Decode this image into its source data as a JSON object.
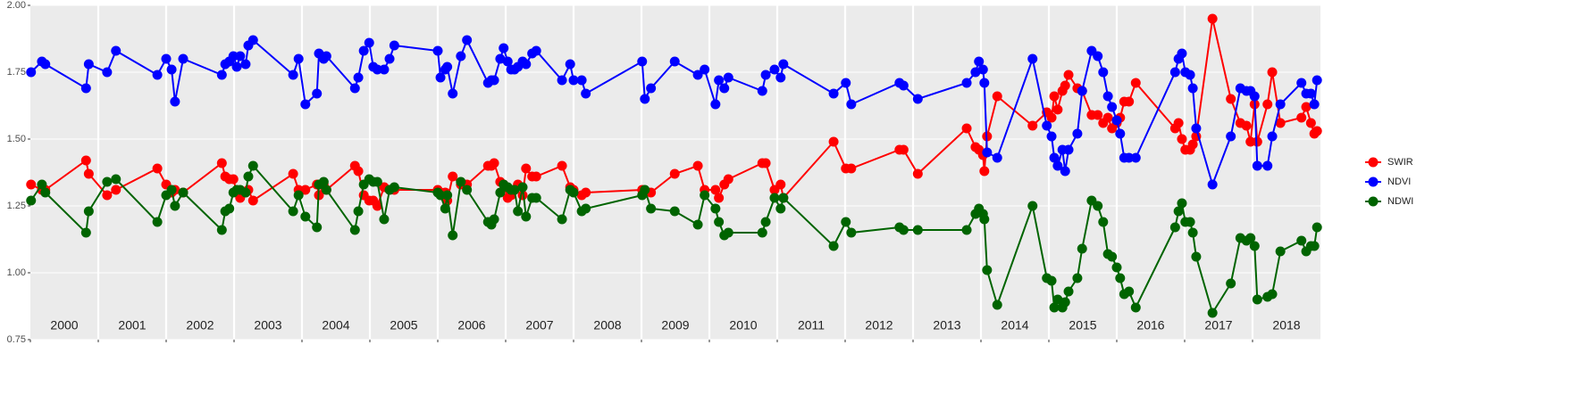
{
  "chart_data": {
    "type": "line",
    "x": [
      2000.01,
      2000.17,
      2000.22,
      2000.82,
      2000.86,
      2001.13,
      2001.26,
      2001.87,
      2002.0,
      2002.08,
      2002.13,
      2002.25,
      2002.82,
      2002.87,
      2002.93,
      2002.99,
      2003.04,
      2003.09,
      2003.17,
      2003.21,
      2003.28,
      2003.87,
      2003.95,
      2004.05,
      2004.22,
      2004.25,
      2004.32,
      2004.36,
      2004.78,
      2004.83,
      2004.91,
      2004.99,
      2005.05,
      2005.11,
      2005.21,
      2005.29,
      2005.36,
      2006.0,
      2006.04,
      2006.11,
      2006.14,
      2006.22,
      2006.34,
      2006.43,
      2006.74,
      2006.79,
      2006.83,
      2006.92,
      2006.97,
      2007.03,
      2007.08,
      2007.13,
      2007.18,
      2007.25,
      2007.3,
      2007.39,
      2007.45,
      2007.83,
      2007.95,
      2008.0,
      2008.12,
      2008.18,
      2009.01,
      2009.05,
      2009.14,
      2009.49,
      2009.83,
      2009.93,
      2010.09,
      2010.14,
      2010.22,
      2010.28,
      2010.78,
      2010.83,
      2010.96,
      2011.05,
      2011.09,
      2011.83,
      2012.01,
      2012.09,
      2012.8,
      2012.86,
      2013.07,
      2013.79,
      2013.92,
      2013.97,
      2014.03,
      2014.05,
      2014.09,
      2014.24,
      2014.76,
      2014.97,
      2015.04,
      2015.08,
      2015.13,
      2015.2,
      2015.24,
      2015.29,
      2015.42,
      2015.49,
      2015.63,
      2015.72,
      2015.8,
      2015.87,
      2015.93,
      2016.0,
      2016.05,
      2016.11,
      2016.18,
      2016.28,
      2016.86,
      2016.91,
      2016.96,
      2017.01,
      2017.08,
      2017.12,
      2017.17,
      2017.41,
      2017.68,
      2017.82,
      2017.91,
      2017.97,
      2018.03,
      2018.07,
      2018.22,
      2018.29,
      2018.41,
      2018.72,
      2018.79,
      2018.86,
      2018.91,
      2018.95
    ],
    "series": [
      {
        "name": "SWIR",
        "color": "#ff0000",
        "values": [
          1.33,
          1.31,
          1.31,
          1.42,
          1.37,
          1.29,
          1.31,
          1.39,
          1.33,
          1.3,
          1.31,
          1.3,
          1.41,
          1.36,
          1.35,
          1.35,
          1.3,
          1.28,
          1.3,
          1.31,
          1.27,
          1.37,
          1.31,
          1.31,
          1.33,
          1.29,
          1.33,
          1.31,
          1.4,
          1.38,
          1.29,
          1.27,
          1.27,
          1.25,
          1.32,
          1.31,
          1.31,
          1.31,
          1.3,
          1.3,
          1.27,
          1.36,
          1.33,
          1.33,
          1.4,
          1.4,
          1.41,
          1.34,
          1.33,
          1.28,
          1.29,
          1.31,
          1.33,
          1.29,
          1.39,
          1.36,
          1.36,
          1.4,
          1.32,
          1.31,
          1.29,
          1.3,
          1.31,
          1.3,
          1.3,
          1.37,
          1.4,
          1.31,
          1.31,
          1.28,
          1.33,
          1.35,
          1.41,
          1.41,
          1.31,
          1.33,
          1.28,
          1.49,
          1.39,
          1.39,
          1.46,
          1.46,
          1.37,
          1.54,
          1.47,
          1.46,
          1.44,
          1.38,
          1.51,
          1.66,
          1.55,
          1.6,
          1.58,
          1.66,
          1.61,
          1.68,
          1.7,
          1.74,
          1.69,
          1.68,
          1.59,
          1.59,
          1.56,
          1.58,
          1.54,
          1.56,
          1.58,
          1.64,
          1.64,
          1.71,
          1.54,
          1.56,
          1.5,
          1.46,
          1.46,
          1.48,
          1.51,
          1.95,
          1.65,
          1.56,
          1.55,
          1.49,
          1.63,
          1.49,
          1.63,
          1.75,
          1.56,
          1.58,
          1.62,
          1.56,
          1.52,
          1.53
        ]
      },
      {
        "name": "NDVI",
        "color": "#0000ff",
        "values": [
          1.75,
          1.79,
          1.78,
          1.69,
          1.78,
          1.75,
          1.83,
          1.74,
          1.8,
          1.76,
          1.64,
          1.8,
          1.74,
          1.78,
          1.79,
          1.81,
          1.77,
          1.81,
          1.78,
          1.85,
          1.87,
          1.74,
          1.8,
          1.63,
          1.67,
          1.82,
          1.8,
          1.81,
          1.69,
          1.73,
          1.83,
          1.86,
          1.77,
          1.76,
          1.76,
          1.8,
          1.85,
          1.83,
          1.73,
          1.76,
          1.77,
          1.67,
          1.81,
          1.87,
          1.71,
          1.72,
          1.72,
          1.8,
          1.84,
          1.79,
          1.76,
          1.76,
          1.77,
          1.79,
          1.78,
          1.82,
          1.83,
          1.72,
          1.78,
          1.72,
          1.72,
          1.67,
          1.79,
          1.65,
          1.69,
          1.79,
          1.74,
          1.76,
          1.63,
          1.72,
          1.69,
          1.73,
          1.68,
          1.74,
          1.76,
          1.73,
          1.78,
          1.67,
          1.71,
          1.63,
          1.71,
          1.7,
          1.65,
          1.71,
          1.75,
          1.79,
          1.76,
          1.71,
          1.45,
          1.43,
          1.8,
          1.55,
          1.51,
          1.43,
          1.4,
          1.46,
          1.38,
          1.46,
          1.52,
          1.68,
          1.83,
          1.81,
          1.75,
          1.66,
          1.62,
          1.57,
          1.52,
          1.43,
          1.43,
          1.43,
          1.75,
          1.8,
          1.82,
          1.75,
          1.74,
          1.69,
          1.54,
          1.33,
          1.51,
          1.69,
          1.68,
          1.68,
          1.66,
          1.4,
          1.4,
          1.51,
          1.63,
          1.71,
          1.67,
          1.67,
          1.63,
          1.72
        ]
      },
      {
        "name": "NDWI",
        "color": "#006400",
        "values": [
          1.27,
          1.33,
          1.3,
          1.15,
          1.23,
          1.34,
          1.35,
          1.19,
          1.29,
          1.31,
          1.25,
          1.3,
          1.16,
          1.23,
          1.24,
          1.3,
          1.31,
          1.31,
          1.3,
          1.36,
          1.4,
          1.23,
          1.29,
          1.21,
          1.17,
          1.33,
          1.34,
          1.31,
          1.16,
          1.23,
          1.33,
          1.35,
          1.34,
          1.34,
          1.2,
          1.31,
          1.32,
          1.3,
          1.29,
          1.24,
          1.29,
          1.14,
          1.34,
          1.31,
          1.19,
          1.18,
          1.2,
          1.3,
          1.33,
          1.32,
          1.31,
          1.31,
          1.23,
          1.32,
          1.21,
          1.28,
          1.28,
          1.2,
          1.31,
          1.3,
          1.23,
          1.24,
          1.29,
          1.31,
          1.24,
          1.23,
          1.18,
          1.29,
          1.24,
          1.19,
          1.14,
          1.15,
          1.15,
          1.19,
          1.28,
          1.24,
          1.28,
          1.1,
          1.19,
          1.15,
          1.17,
          1.16,
          1.16,
          1.16,
          1.22,
          1.24,
          1.22,
          1.2,
          1.01,
          0.88,
          1.25,
          0.98,
          0.97,
          0.87,
          0.9,
          0.87,
          0.89,
          0.93,
          0.98,
          1.09,
          1.27,
          1.25,
          1.19,
          1.07,
          1.06,
          1.02,
          0.98,
          0.92,
          0.93,
          0.87,
          1.17,
          1.23,
          1.26,
          1.19,
          1.19,
          1.15,
          1.06,
          0.85,
          0.96,
          1.13,
          1.12,
          1.13,
          1.1,
          0.9,
          0.91,
          0.92,
          1.08,
          1.12,
          1.08,
          1.1,
          1.1,
          1.17
        ]
      }
    ],
    "xlim": [
      2000,
      2019
    ],
    "xticks": [
      {
        "value": 2000,
        "label": "2000"
      },
      {
        "value": 2001,
        "label": "2001"
      },
      {
        "value": 2002,
        "label": "2002"
      },
      {
        "value": 2003,
        "label": "2003"
      },
      {
        "value": 2004,
        "label": "2004"
      },
      {
        "value": 2005,
        "label": "2005"
      },
      {
        "value": 2006,
        "label": "2006"
      },
      {
        "value": 2007,
        "label": "2007"
      },
      {
        "value": 2008,
        "label": "2008"
      },
      {
        "value": 2009,
        "label": "2009"
      },
      {
        "value": 2010,
        "label": "2010"
      },
      {
        "value": 2011,
        "label": "2011"
      },
      {
        "value": 2012,
        "label": "2012"
      },
      {
        "value": 2013,
        "label": "2013"
      },
      {
        "value": 2014,
        "label": "2014"
      },
      {
        "value": 2015,
        "label": "2015"
      },
      {
        "value": 2016,
        "label": "2016"
      },
      {
        "value": 2017,
        "label": "2017"
      },
      {
        "value": 2018,
        "label": "2018"
      }
    ],
    "ylim": [
      0.75,
      2.0
    ],
    "yticks": [
      {
        "value": 0.75,
        "label": "0.75"
      },
      {
        "value": 1.0,
        "label": "1.00"
      },
      {
        "value": 1.25,
        "label": "1.25"
      },
      {
        "value": 1.5,
        "label": "1.50"
      },
      {
        "value": 1.75,
        "label": "1.75"
      },
      {
        "value": 2.0,
        "label": "2.00"
      }
    ],
    "grid": true,
    "legend": "right"
  }
}
